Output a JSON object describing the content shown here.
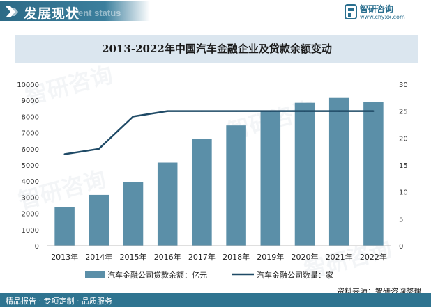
{
  "header": {
    "section_title": "发展现状",
    "section_subtitle": "ent status",
    "brand_name": "智研咨询",
    "brand_url": "www.chyxx.com",
    "brand_color": "#2a6f8f"
  },
  "watermark_text": "智研咨询",
  "footer": {
    "left_text": "精品报告 · 专项定制 · 品质服务",
    "source_text": "资料来源：智研咨询整理"
  },
  "colors": {
    "bar": "#5b8fa8",
    "line": "#1f4a66",
    "accent": "#2f7490"
  },
  "chart_data": {
    "type": "bar",
    "title": "2013-2022年中国汽车金融企业及贷款余额变动",
    "categories": [
      "2013年",
      "2014年",
      "2015年",
      "2016年",
      "2017年",
      "2018年",
      "2019年",
      "2020年",
      "2021年",
      "2022年"
    ],
    "series": [
      {
        "name": "汽车金融公司贷款余额：亿元",
        "type": "bar",
        "axis": "left",
        "values": [
          2380,
          3150,
          3950,
          5150,
          6620,
          7450,
          8340,
          8850,
          9150,
          8900
        ]
      },
      {
        "name": "汽车金融公司数量：家",
        "type": "line",
        "axis": "right",
        "values": [
          17,
          18,
          24,
          25,
          25,
          25,
          25,
          25,
          25,
          25
        ]
      }
    ],
    "y_left": {
      "min": 0,
      "max": 10000,
      "ticks": [
        "0",
        "1000",
        "2000",
        "3000",
        "4000",
        "5000",
        "6000",
        "7000",
        "8000",
        "9000",
        "10000"
      ]
    },
    "y_right": {
      "min": 0,
      "max": 30,
      "ticks": [
        "0",
        "5",
        "10",
        "15",
        "20",
        "25",
        "30"
      ]
    },
    "grid": false,
    "legend": "bottom"
  }
}
